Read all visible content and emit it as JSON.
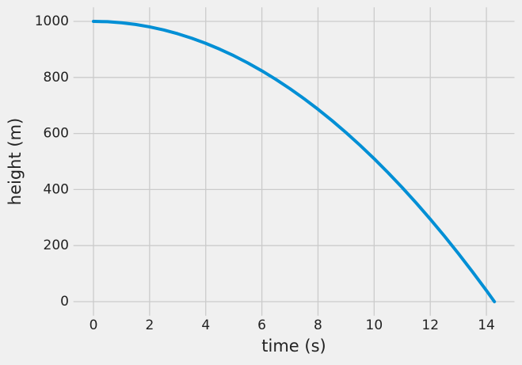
{
  "chart_data": {
    "type": "line",
    "x_label": "time (s)",
    "y_label": "height (m)",
    "x": [
      0,
      0.5,
      1,
      1.5,
      2,
      2.5,
      3,
      3.5,
      4,
      4.5,
      5,
      5.5,
      6,
      6.5,
      7,
      7.5,
      8,
      8.5,
      9,
      9.5,
      10,
      10.5,
      11,
      11.5,
      12,
      12.5,
      13,
      13.5,
      14,
      14.2857
    ],
    "series": [
      {
        "color": "#008fd5",
        "values": [
          1000,
          998.775,
          995.1,
          988.975,
          980.4,
          969.375,
          955.9,
          939.975,
          921.6,
          900.775,
          877.5,
          851.775,
          823.6,
          792.975,
          759.9,
          724.375,
          686.4,
          645.975,
          603.1,
          557.775,
          510,
          459.775,
          407.1,
          351.975,
          294.4,
          234.375,
          171.9,
          106.975,
          39.6,
          0
        ]
      }
    ],
    "xlim": [
      -0.714,
      15.0
    ],
    "ylim": [
      -50,
      1050
    ],
    "xticks": [
      0,
      2,
      4,
      6,
      8,
      10,
      12,
      14
    ],
    "yticks": [
      0,
      200,
      400,
      600,
      800,
      1000
    ],
    "grid": true
  }
}
